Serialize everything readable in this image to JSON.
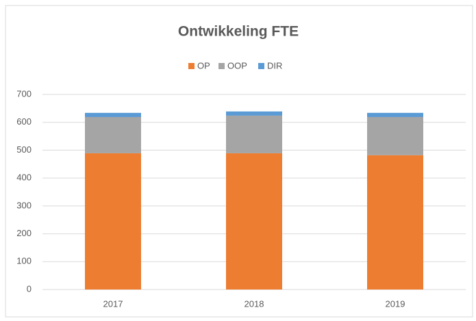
{
  "chart_data": {
    "type": "bar",
    "stacked": true,
    "title": "Ontwikkeling FTE",
    "categories": [
      "2017",
      "2018",
      "2019"
    ],
    "series": [
      {
        "name": "OP",
        "color": "#ed7d31",
        "values": [
          489,
          489,
          482
        ]
      },
      {
        "name": "OOP",
        "color": "#a5a5a5",
        "values": [
          130,
          135,
          137
        ]
      },
      {
        "name": "DIR",
        "color": "#5b9bd5",
        "values": [
          15,
          15,
          15
        ]
      }
    ],
    "ylim": [
      0,
      700
    ],
    "yticks": [
      0,
      100,
      200,
      300,
      400,
      500,
      600,
      700
    ],
    "grid": true,
    "legend": "top"
  }
}
